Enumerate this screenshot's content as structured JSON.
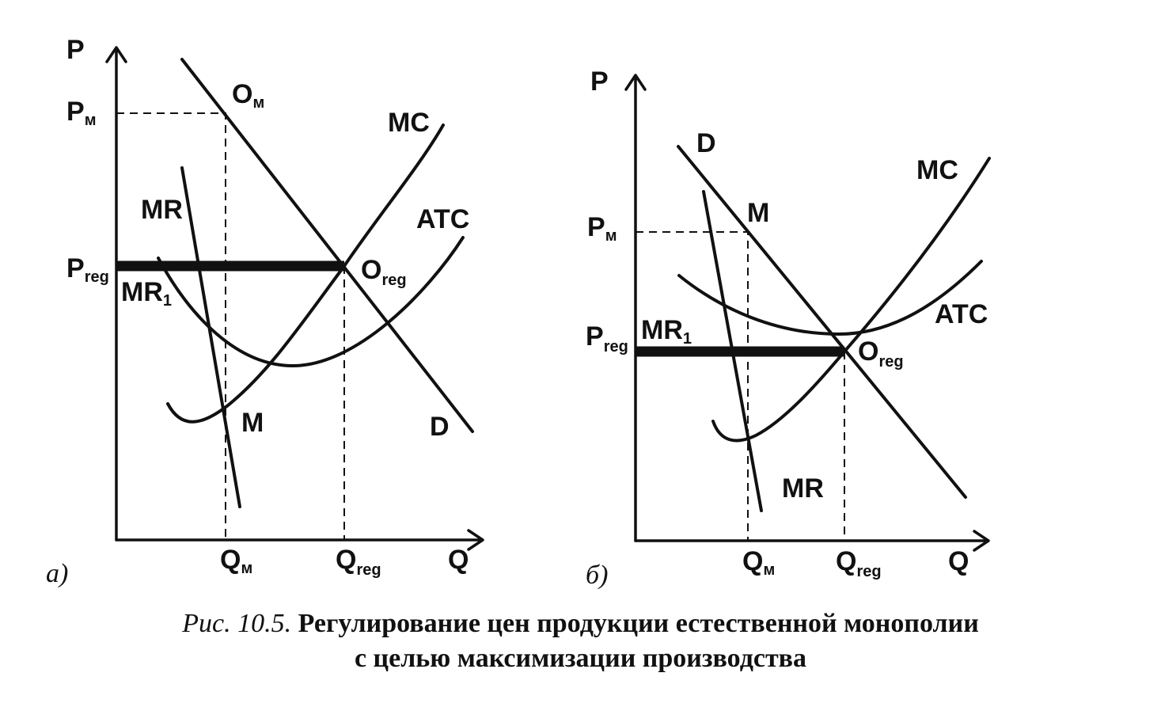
{
  "panel_a": {
    "tag": "а)",
    "labels": {
      "p_axis": "P",
      "q_axis": "Q",
      "pm_main": "P",
      "pm_sub": "м",
      "preg_main": "P",
      "preg_sub": "reg",
      "om_main": "O",
      "om_sub": "м",
      "oreg_main": "O",
      "oreg_sub": "reg",
      "mc": "MC",
      "atc": "ATC",
      "mr": "MR",
      "mr1_main": "MR",
      "mr1_sub": "1",
      "m": "M",
      "d": "D",
      "qm_main": "Q",
      "qm_sub": "м",
      "qreg_main": "Q",
      "qreg_sub": "reg"
    }
  },
  "panel_b": {
    "tag": "б)",
    "labels": {
      "p_axis": "P",
      "q_axis": "Q",
      "pm_main": "P",
      "pm_sub": "м",
      "preg_main": "P",
      "preg_sub": "reg",
      "oreg_main": "O",
      "oreg_sub": "reg",
      "mc": "MC",
      "atc": "ATC",
      "mr": "MR",
      "mr1_main": "MR",
      "mr1_sub": "1",
      "m": "M",
      "d": "D",
      "qm_main": "Q",
      "qm_sub": "м",
      "qreg_main": "Q",
      "qreg_sub": "reg"
    }
  },
  "caption": {
    "fig_num": "Рис. 10.5.",
    "line1": "Регулирование цен продукции естественной монополии",
    "line2": "с целью максимизации производства"
  }
}
